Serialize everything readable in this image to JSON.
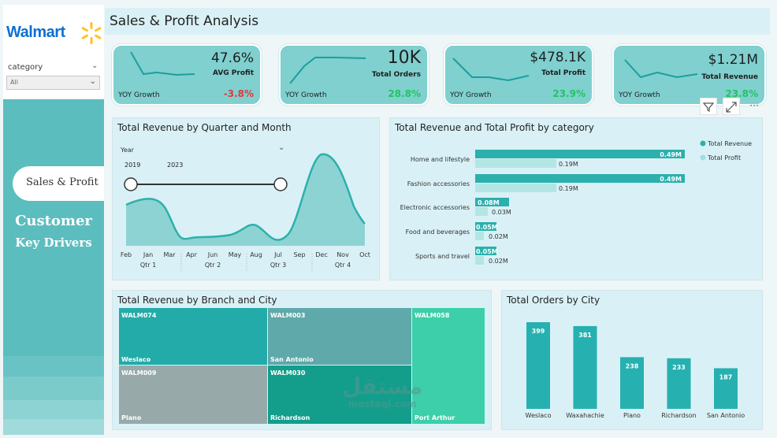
{
  "sidebar": {
    "logo_text": "Walmart",
    "category": {
      "label": "category",
      "selected": "All"
    },
    "nav": [
      {
        "label": "Sales & Profit",
        "active": true
      },
      {
        "label_line1": "Customer",
        "label_line2": "Key Drivers",
        "active": false
      }
    ]
  },
  "header": {
    "title": "Sales & Profit Analysis"
  },
  "kpis": [
    {
      "value": "47.6%",
      "label": "AVG Profit",
      "yoy_label": "YOY Growth",
      "yoy_value": "-3.8%",
      "yoy_color": "#e03a3a"
    },
    {
      "value": "10K",
      "label": "Total Orders",
      "yoy_label": "YOY Growth",
      "yoy_value": "28.8%",
      "yoy_color": "#22c55e"
    },
    {
      "value": "$478.1K",
      "label": "Total Profit",
      "yoy_label": "YOY Growth",
      "yoy_value": "23.9%",
      "yoy_color": "#22c55e"
    },
    {
      "value": "$1.21M",
      "label": "Total Revenue",
      "yoy_label": "YOY Growth",
      "yoy_value": "23.8%",
      "yoy_color": "#22c55e"
    }
  ],
  "visual_tools": {
    "filter_icon": "filter-icon",
    "focus_icon": "focus-mode-icon",
    "more_icon": "more-options-icon"
  },
  "revenue_by_month": {
    "title": "Total Revenue by Quarter and Month",
    "slicer": {
      "label": "Year",
      "start": "2019",
      "end": "2023"
    },
    "months": [
      "Feb",
      "Jan",
      "Mar",
      "Apr",
      "Jun",
      "May",
      "Aug",
      "Jul",
      "Sep",
      "Dec",
      "Nov",
      "Oct"
    ],
    "quarters": [
      "Qtr 1",
      "Qtr 2",
      "Qtr 3",
      "Qtr 4"
    ]
  },
  "category_chart": {
    "title": "Total Revenue and Total Profit by category",
    "legend": [
      "Total Revenue",
      "Total Profit"
    ],
    "rows": [
      {
        "name": "Home and lifestyle",
        "revenue": "0.49M",
        "profit": "0.19M"
      },
      {
        "name": "Fashion accessories",
        "revenue": "0.49M",
        "profit": "0.19M"
      },
      {
        "name": "Electronic accessories",
        "revenue": "0.08M",
        "profit": "0.03M"
      },
      {
        "name": "Food and beverages",
        "revenue": "0.05M",
        "profit": "0.02M"
      },
      {
        "name": "Sports and travel",
        "revenue": "0.05M",
        "profit": "0.02M"
      }
    ]
  },
  "treemap": {
    "title": "Total Revenue by Branch and City",
    "cells": [
      {
        "branch": "WALM074",
        "city": "Weslaco",
        "color": "#22aba9"
      },
      {
        "branch": "WALM003",
        "city": "San Antonio",
        "color": "#5fa9aa"
      },
      {
        "branch": "WALM058",
        "city": "Port Arthur",
        "color": "#3ccfa9"
      },
      {
        "branch": "WALM009",
        "city": "Plano",
        "color": "#97a9a9"
      },
      {
        "branch": "WALM030",
        "city": "Richardson",
        "color": "#139e8c"
      }
    ]
  },
  "orders_by_city": {
    "title": "Total Orders by City",
    "categories": [
      "Weslaco",
      "Waxahachie",
      "Plano",
      "Richardson",
      "San Antonio"
    ],
    "values": [
      399,
      381,
      238,
      233,
      187
    ],
    "bar_color": "#26b0b0"
  },
  "watermark": {
    "arabic": "مستقل",
    "latin": "mostaql.com"
  }
}
